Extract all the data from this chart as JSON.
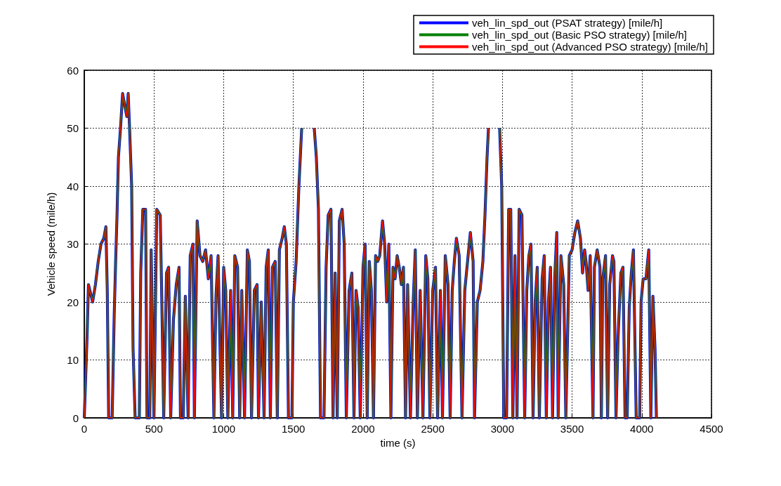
{
  "chart_data": {
    "type": "line",
    "xlabel": "time (s)",
    "ylabel": "Vehicle speed (mile/h)",
    "x": [
      0,
      20,
      30,
      60,
      80,
      100,
      120,
      140,
      155,
      165,
      175,
      200,
      215,
      225,
      235,
      245,
      260,
      275,
      290,
      305,
      315,
      325,
      340,
      350,
      365,
      395,
      405,
      420,
      440,
      450,
      470,
      480,
      500,
      520,
      545,
      555,
      570,
      590,
      605,
      620,
      640,
      660,
      680,
      690,
      710,
      725,
      745,
      760,
      780,
      790,
      810,
      830,
      850,
      870,
      890,
      910,
      930,
      945,
      960,
      985,
      1000,
      1015,
      1030,
      1050,
      1065,
      1080,
      1100,
      1115,
      1130,
      1150,
      1170,
      1185,
      1200,
      1220,
      1240,
      1250,
      1270,
      1290,
      1305,
      1320,
      1335,
      1350,
      1370,
      1385,
      1400,
      1420,
      1435,
      1450,
      1465,
      1490,
      1500,
      1520,
      1540,
      1560,
      1575,
      1610,
      1650,
      1665,
      1680,
      1695,
      1720,
      1735,
      1750,
      1770,
      1785,
      1800,
      1815,
      1830,
      1850,
      1865,
      1880,
      1900,
      1920,
      1935,
      1950,
      1965,
      1980,
      2000,
      2015,
      2030,
      2045,
      2060,
      2075,
      2090,
      2105,
      2120,
      2140,
      2155,
      2170,
      2185,
      2200,
      2215,
      2230,
      2245,
      2260,
      2275,
      2290,
      2305,
      2320,
      2340,
      2360,
      2375,
      2390,
      2410,
      2430,
      2450,
      2465,
      2480,
      2500,
      2520,
      2535,
      2555,
      2570,
      2590,
      2610,
      2625,
      2640,
      2655,
      2670,
      2690,
      2710,
      2730,
      2750,
      2770,
      2790,
      2800,
      2820,
      2840,
      2860,
      2875,
      2890,
      2900,
      2940,
      2980,
      2995,
      3010,
      3030,
      3045,
      3060,
      3075,
      3090,
      3105,
      3120,
      3140,
      3160,
      3175,
      3190,
      3205,
      3220,
      3235,
      3250,
      3265,
      3285,
      3300,
      3315,
      3330,
      3345,
      3360,
      3375,
      3390,
      3400,
      3420,
      3440,
      3455,
      3480,
      3500,
      3520,
      3540,
      3560,
      3575,
      3590,
      3600,
      3615,
      3630,
      3650,
      3660,
      3680,
      3700,
      3710,
      3720,
      3740,
      3755,
      3770,
      3790,
      3800,
      3815,
      3830,
      3850,
      3865,
      3880,
      3895,
      3910,
      3925,
      3940,
      3960,
      3985,
      3995,
      4010,
      4030,
      4050,
      4065,
      4080,
      4095,
      4105
    ],
    "series": [
      {
        "name": "veh_lin_spd_out (PSAT strategy) [mile/h]",
        "color": "#0000ff",
        "values": [
          0,
          14,
          23,
          20,
          23,
          27,
          30,
          31,
          33,
          22,
          0,
          0,
          18,
          27,
          35,
          45,
          50,
          56,
          54,
          52,
          56,
          50,
          40,
          12,
          0,
          0,
          25,
          36,
          36,
          0,
          0,
          29,
          0,
          36,
          35,
          22,
          0,
          25,
          26,
          0,
          17,
          23,
          26,
          0,
          0,
          21,
          0,
          28,
          30,
          0,
          34,
          28,
          27,
          29,
          24,
          28,
          0,
          21,
          28,
          0,
          26,
          22,
          0,
          22,
          0,
          28,
          26,
          0,
          22,
          0,
          29,
          27,
          0,
          22,
          23,
          0,
          20,
          0,
          26,
          29,
          0,
          26,
          27,
          0,
          29,
          31,
          33,
          30,
          0,
          0,
          20,
          27,
          40,
          50,
          null,
          null,
          50,
          45,
          36,
          0,
          0,
          26,
          35,
          36,
          0,
          25,
          0,
          34,
          36,
          30,
          0,
          22,
          25,
          0,
          22,
          19,
          0,
          26,
          30,
          0,
          27,
          22,
          0,
          28,
          27,
          28,
          34,
          30,
          20,
          30,
          0,
          26,
          24,
          28,
          26,
          23,
          26,
          0,
          23,
          0,
          20,
          29,
          0,
          22,
          0,
          28,
          24,
          0,
          22,
          26,
          0,
          22,
          0,
          28,
          23,
          0,
          22,
          27,
          31,
          28,
          0,
          22,
          27,
          32,
          27,
          0,
          20,
          22,
          27,
          35,
          45,
          50,
          null,
          50,
          40,
          0,
          0,
          36,
          36,
          0,
          28,
          0,
          36,
          35,
          0,
          22,
          28,
          30,
          0,
          20,
          26,
          0,
          24,
          28,
          0,
          20,
          26,
          0,
          24,
          32,
          0,
          28,
          23,
          0,
          28,
          29,
          32,
          34,
          31,
          25,
          29,
          27,
          22,
          28,
          0,
          26,
          29,
          26,
          0,
          24,
          28,
          0,
          23,
          28,
          27,
          0,
          14,
          25,
          26,
          0,
          0,
          19,
          25,
          29,
          0,
          0,
          20,
          24,
          24,
          29,
          0,
          21,
          12,
          0
        ]
      },
      {
        "name": "veh_lin_spd_out (Basic PSO strategy) [mile/h]",
        "color": "#008000",
        "values": [
          0,
          14,
          23,
          20,
          23,
          27,
          30,
          31,
          33,
          22,
          0,
          0,
          18,
          27,
          35,
          45,
          50,
          56,
          54,
          52,
          56,
          50,
          40,
          12,
          0,
          0,
          25,
          36,
          36,
          0,
          0,
          29,
          0,
          36,
          35,
          22,
          0,
          25,
          26,
          0,
          17,
          23,
          26,
          0,
          0,
          21,
          0,
          28,
          30,
          0,
          34,
          28,
          27,
          29,
          24,
          28,
          0,
          21,
          28,
          0,
          26,
          22,
          0,
          22,
          0,
          28,
          26,
          0,
          22,
          0,
          29,
          27,
          0,
          22,
          23,
          0,
          20,
          0,
          26,
          29,
          0,
          26,
          27,
          0,
          29,
          31,
          33,
          30,
          0,
          0,
          20,
          27,
          40,
          50,
          null,
          null,
          50,
          45,
          36,
          0,
          0,
          26,
          35,
          36,
          0,
          25,
          0,
          34,
          36,
          30,
          0,
          22,
          25,
          0,
          22,
          19,
          0,
          26,
          30,
          0,
          27,
          22,
          0,
          28,
          27,
          28,
          34,
          30,
          20,
          30,
          0,
          26,
          24,
          28,
          26,
          23,
          26,
          0,
          23,
          0,
          20,
          29,
          0,
          22,
          0,
          28,
          24,
          0,
          22,
          26,
          0,
          22,
          0,
          28,
          23,
          0,
          22,
          27,
          31,
          28,
          0,
          22,
          27,
          32,
          27,
          0,
          20,
          22,
          27,
          35,
          45,
          50,
          null,
          50,
          40,
          0,
          0,
          36,
          36,
          0,
          28,
          0,
          36,
          35,
          0,
          22,
          28,
          30,
          0,
          20,
          26,
          0,
          24,
          28,
          0,
          20,
          26,
          0,
          24,
          32,
          0,
          28,
          23,
          0,
          28,
          29,
          32,
          34,
          31,
          25,
          29,
          27,
          22,
          28,
          0,
          26,
          29,
          26,
          0,
          24,
          28,
          0,
          23,
          28,
          27,
          0,
          14,
          25,
          26,
          0,
          0,
          19,
          25,
          29,
          0,
          0,
          20,
          24,
          24,
          29,
          0,
          21,
          12,
          0
        ]
      },
      {
        "name": "veh_lin_spd_out (Advanced PSO strategy) [mile/h]",
        "color": "#ff0000",
        "values": [
          0,
          14,
          23,
          20,
          23,
          27,
          30,
          31,
          33,
          22,
          0,
          0,
          18,
          27,
          35,
          45,
          50,
          56,
          54,
          52,
          56,
          50,
          40,
          12,
          0,
          0,
          25,
          36,
          36,
          0,
          0,
          29,
          0,
          36,
          35,
          22,
          0,
          25,
          26,
          0,
          17,
          23,
          26,
          0,
          0,
          21,
          0,
          28,
          30,
          0,
          34,
          28,
          27,
          29,
          24,
          28,
          0,
          21,
          28,
          0,
          26,
          22,
          0,
          22,
          0,
          28,
          26,
          0,
          22,
          0,
          29,
          27,
          0,
          22,
          23,
          0,
          20,
          0,
          26,
          29,
          0,
          26,
          27,
          0,
          29,
          31,
          33,
          30,
          0,
          0,
          20,
          27,
          40,
          50,
          null,
          null,
          50,
          45,
          36,
          0,
          0,
          26,
          35,
          36,
          0,
          25,
          0,
          34,
          36,
          30,
          0,
          22,
          25,
          0,
          22,
          19,
          0,
          26,
          30,
          0,
          27,
          22,
          0,
          28,
          27,
          28,
          34,
          30,
          20,
          30,
          0,
          26,
          24,
          28,
          26,
          23,
          26,
          0,
          23,
          0,
          20,
          29,
          0,
          22,
          0,
          28,
          24,
          0,
          22,
          26,
          0,
          22,
          0,
          28,
          23,
          0,
          22,
          27,
          31,
          28,
          0,
          22,
          27,
          32,
          27,
          0,
          20,
          22,
          27,
          35,
          45,
          50,
          null,
          50,
          40,
          0,
          0,
          36,
          36,
          0,
          28,
          0,
          36,
          35,
          0,
          22,
          28,
          30,
          0,
          20,
          26,
          0,
          24,
          28,
          0,
          20,
          26,
          0,
          24,
          32,
          0,
          28,
          23,
          0,
          28,
          29,
          32,
          34,
          31,
          25,
          29,
          27,
          22,
          28,
          0,
          26,
          29,
          26,
          0,
          24,
          28,
          0,
          23,
          28,
          27,
          0,
          14,
          25,
          26,
          0,
          0,
          19,
          25,
          29,
          0,
          0,
          20,
          24,
          24,
          29,
          0,
          21,
          12,
          0
        ]
      }
    ],
    "xlim": [
      0,
      4500
    ],
    "xticks": [
      0,
      500,
      1000,
      1500,
      2000,
      2500,
      3000,
      3500,
      4000,
      4500
    ],
    "ylim": [
      0,
      60
    ],
    "yticks": [
      0,
      10,
      20,
      30,
      40,
      50,
      60
    ],
    "grid": true,
    "legend": "top right",
    "marker": "none",
    "line_style": "solid"
  }
}
